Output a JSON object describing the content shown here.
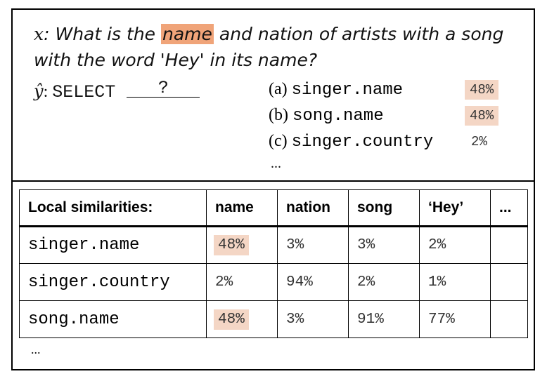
{
  "question": {
    "var": "x",
    "prefix": ":  What is the ",
    "highlight": "name",
    "suffix": " and nation of artists with a song with the word 'Hey' in its name?"
  },
  "prediction": {
    "var": "ŷ",
    "sep": ": ",
    "keyword": "SELECT",
    "blank": "?"
  },
  "options": [
    {
      "letter": "(a)",
      "text": "singer.name",
      "pct": "48%",
      "highlight": true
    },
    {
      "letter": "(b)",
      "text": "song.name",
      "pct": "48%",
      "highlight": true
    },
    {
      "letter": "(c)",
      "text": "singer.country",
      "pct": "2%",
      "highlight": false
    }
  ],
  "options_more": "...",
  "table": {
    "header": [
      "Local similarities:",
      "name",
      "nation",
      "song",
      "‘Hey’",
      "..."
    ],
    "rows": [
      {
        "label": "singer.name",
        "cells": [
          "48%",
          "3%",
          "3%",
          "2%",
          ""
        ],
        "hi": [
          true,
          false,
          false,
          false,
          false
        ]
      },
      {
        "label": "singer.country",
        "cells": [
          "2%",
          "94%",
          "2%",
          "1%",
          ""
        ],
        "hi": [
          false,
          false,
          false,
          false,
          false
        ]
      },
      {
        "label": "song.name",
        "cells": [
          "48%",
          "3%",
          "91%",
          "77%",
          ""
        ],
        "hi": [
          true,
          false,
          false,
          false,
          false
        ]
      }
    ]
  },
  "table_more": "...",
  "colors": {
    "highlight_strong": "#f0a479",
    "highlight_soft": "#f4d6c5"
  }
}
